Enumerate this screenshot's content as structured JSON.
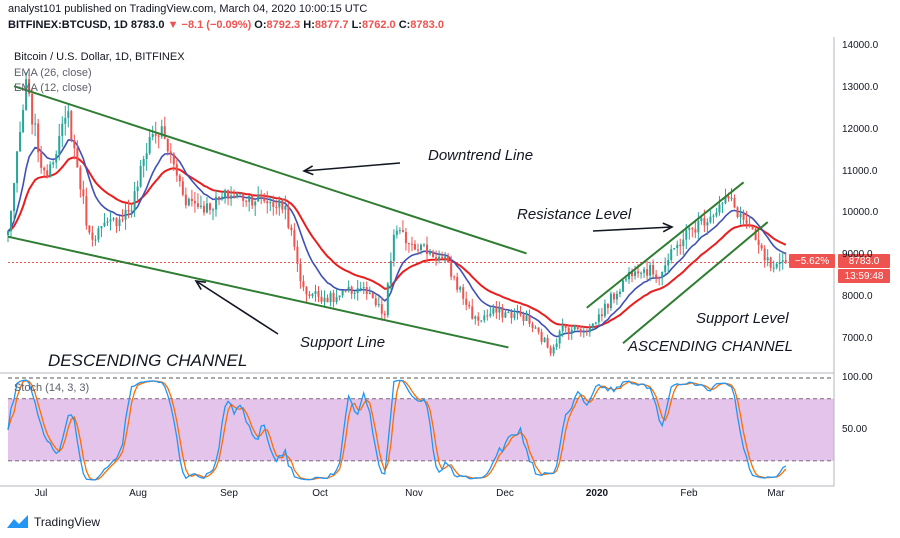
{
  "header": {
    "publisher": "analyst101",
    "published_text": "published on TradingView.com, March 04, 2020 10:00:15 UTC",
    "symbol": "BITFINEX:BTCUSD, 1D",
    "last": "8783.0",
    "change": "−8.1 (−0.09%)",
    "o_label": "O:",
    "o": "8792.3",
    "h_label": "H:",
    "h": "8877.7",
    "l_label": "L:",
    "l": "8762.0",
    "c_label": "C:",
    "c": "8783.0"
  },
  "colors": {
    "up": "#26a69a",
    "down": "#ef5350",
    "ema26": "#e91e1e",
    "ema12": "#3f51b5",
    "trendline": "#2e7d32",
    "stoch_k": "#2196f3",
    "stoch_d": "#ff6d00",
    "stoch_band": "#ce93d8"
  },
  "chart_data": [
    {
      "type": "candlestick",
      "title": "Bitcoin / U.S. Dollar, 1D, BITFINEX",
      "legend": [
        "EMA (26, close)",
        "EMA (12, close)"
      ],
      "y_ticks": [
        "14000.0",
        "13000.0",
        "12000.0",
        "11000.0",
        "10000.0",
        "9000.0",
        "8000.0",
        "7000.0"
      ],
      "ylim": [
        6000,
        14200
      ],
      "x_ticks": [
        "Jul",
        "Aug",
        "Sep",
        "Oct",
        "Nov",
        "Dec",
        "2020",
        "Feb",
        "Mar"
      ],
      "x_range": [
        "2019-06-20",
        "2020-03-20"
      ],
      "price_label": "8783.0",
      "pct_label": "−5.62%",
      "countdown_label": "13:59:48",
      "closes": [
        {
          "date": "2019-06-20",
          "v": 9500
        },
        {
          "date": "2019-06-26",
          "v": 13000
        },
        {
          "date": "2019-07-02",
          "v": 10800
        },
        {
          "date": "2019-07-10",
          "v": 12300
        },
        {
          "date": "2019-07-17",
          "v": 9400
        },
        {
          "date": "2019-07-24",
          "v": 9700
        },
        {
          "date": "2019-07-31",
          "v": 10100
        },
        {
          "date": "2019-08-06",
          "v": 11800
        },
        {
          "date": "2019-08-10",
          "v": 11900
        },
        {
          "date": "2019-08-18",
          "v": 10300
        },
        {
          "date": "2019-08-25",
          "v": 10100
        },
        {
          "date": "2019-09-01",
          "v": 10400
        },
        {
          "date": "2019-09-12",
          "v": 10300
        },
        {
          "date": "2019-09-20",
          "v": 10100
        },
        {
          "date": "2019-09-26",
          "v": 8100
        },
        {
          "date": "2019-10-06",
          "v": 7900
        },
        {
          "date": "2019-10-15",
          "v": 8200
        },
        {
          "date": "2019-10-23",
          "v": 7500
        },
        {
          "date": "2019-10-26",
          "v": 9500
        },
        {
          "date": "2019-11-03",
          "v": 9200
        },
        {
          "date": "2019-11-12",
          "v": 8800
        },
        {
          "date": "2019-11-22",
          "v": 7400
        },
        {
          "date": "2019-11-29",
          "v": 7600
        },
        {
          "date": "2019-12-08",
          "v": 7500
        },
        {
          "date": "2019-12-17",
          "v": 6700
        },
        {
          "date": "2019-12-21",
          "v": 7200
        },
        {
          "date": "2019-12-30",
          "v": 7200
        },
        {
          "date": "2020-01-07",
          "v": 8000
        },
        {
          "date": "2020-01-14",
          "v": 8700
        },
        {
          "date": "2020-01-22",
          "v": 8500
        },
        {
          "date": "2020-01-30",
          "v": 9400
        },
        {
          "date": "2020-02-09",
          "v": 10000
        },
        {
          "date": "2020-02-14",
          "v": 10300
        },
        {
          "date": "2020-02-20",
          "v": 9700
        },
        {
          "date": "2020-02-25",
          "v": 9000
        },
        {
          "date": "2020-02-29",
          "v": 8550
        },
        {
          "date": "2020-03-04",
          "v": 8783
        }
      ],
      "trendlines": [
        {
          "start": {
            "date": "2019-06-22",
            "v": 13000
          },
          "end": {
            "date": "2019-12-09",
            "v": 9000
          }
        },
        {
          "start": {
            "date": "2019-06-20",
            "v": 9400
          },
          "end": {
            "date": "2019-12-03",
            "v": 6750
          }
        },
        {
          "start": {
            "date": "2020-01-10",
            "v": 6850
          },
          "end": {
            "date": "2020-02-27",
            "v": 9750
          }
        },
        {
          "start": {
            "date": "2019-12-29",
            "v": 7700
          },
          "end": {
            "date": "2020-02-19",
            "v": 10700
          }
        }
      ],
      "annotations": [
        {
          "text": "Downtrend  Line"
        },
        {
          "text": "Support Line"
        },
        {
          "text": "Resistance Level"
        },
        {
          "text": "Support Level"
        },
        {
          "text": "DESCENDING CHANNEL"
        },
        {
          "text": "ASCENDING CHANNEL"
        }
      ]
    },
    {
      "type": "line",
      "title": "Stoch (14, 3, 3)",
      "y_ticks": [
        "100.00",
        "50.00"
      ],
      "ylim": [
        0,
        100
      ],
      "band": [
        20,
        80
      ]
    }
  ],
  "footer": {
    "brand": "TradingView"
  }
}
